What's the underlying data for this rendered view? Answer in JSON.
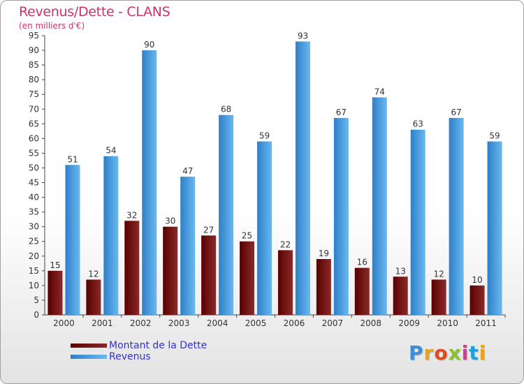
{
  "header": {
    "title": "Revenus/Dette - CLANS",
    "subtitle": "(en milliers d'€)"
  },
  "brand": {
    "text": "Proxiti",
    "letter_colors": [
      "#3a8fd8",
      "#e8a317",
      "#e04a1f",
      "#8bbf2e",
      "#d43c8f",
      "#1fa0d8",
      "#e8a317"
    ]
  },
  "colors": {
    "dette": "#7a1010",
    "revenus": "#4aa3e8"
  },
  "chart_data": {
    "type": "bar",
    "title": "Revenus/Dette - CLANS",
    "subtitle": "(en milliers d'€)",
    "categories": [
      "2000",
      "2001",
      "2002",
      "2003",
      "2004",
      "2005",
      "2006",
      "2007",
      "2008",
      "2009",
      "2010",
      "2011"
    ],
    "series": [
      {
        "name": "Montant de la Dette",
        "color": "#7a1010",
        "values": [
          15,
          12,
          32,
          30,
          27,
          25,
          22,
          19,
          16,
          13,
          12,
          10
        ]
      },
      {
        "name": "Revenus",
        "color": "#4aa3e8",
        "values": [
          51,
          54,
          90,
          47,
          68,
          59,
          93,
          67,
          74,
          63,
          67,
          59
        ]
      }
    ],
    "ylim": [
      0,
      95
    ],
    "ytick_step": 5,
    "grid": false,
    "legend_position": "bottom-left",
    "data_labels": true
  }
}
